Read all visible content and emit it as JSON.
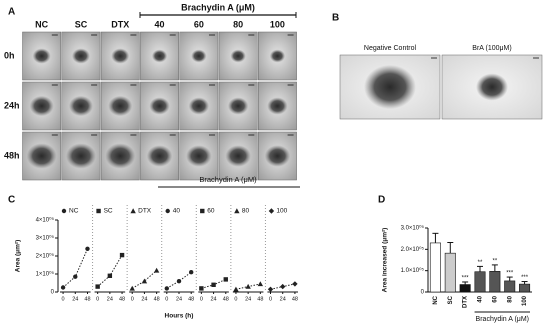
{
  "panel_a": {
    "label": "A",
    "group_label": "Brachydin A (μM)",
    "columns": [
      "NC",
      "SC",
      "DTX",
      "40",
      "60",
      "80",
      "100"
    ],
    "rows": [
      "0h",
      "24h",
      "48h"
    ]
  },
  "panel_b": {
    "label": "B",
    "images": [
      "Negative Control",
      "BrA (100μM)"
    ]
  },
  "chart_data": [
    {
      "type": "line",
      "panel": "C",
      "group_label": "Brachydin A (μM)",
      "xlabel": "Hours (h)",
      "ylabel": "Area (μm²)",
      "x": [
        0,
        24,
        48
      ],
      "xticks": [
        0,
        24,
        48
      ],
      "xlim": [
        -10,
        58
      ],
      "ylim": [
        0,
        400000
      ],
      "yticks": [
        0,
        {
          "value": 100000,
          "label": "1×10⁰⁵"
        },
        {
          "value": 200000,
          "label": "2×10⁰⁵"
        },
        {
          "value": 300000,
          "label": "3×10⁰⁵"
        },
        {
          "value": 400000,
          "label": "4×10⁰⁵"
        }
      ],
      "series": [
        {
          "name": "NC",
          "color": "#222222",
          "marker": "circle",
          "values": [
            25000,
            85000,
            240000
          ]
        },
        {
          "name": "SC",
          "color": "#222222",
          "marker": "square",
          "values": [
            30000,
            90000,
            205000
          ]
        },
        {
          "name": "DTX",
          "color": "#222222",
          "marker": "triangle",
          "values": [
            20000,
            60000,
            120000
          ]
        },
        {
          "name": "40",
          "color": "#222222",
          "marker": "circle",
          "values": [
            20000,
            60000,
            110000
          ]
        },
        {
          "name": "60",
          "color": "#222222",
          "marker": "square",
          "values": [
            20000,
            40000,
            70000
          ]
        },
        {
          "name": "80",
          "color": "#222222",
          "marker": "triangle",
          "values": [
            15000,
            30000,
            45000
          ]
        },
        {
          "name": "100",
          "color": "#222222",
          "marker": "diamond",
          "values": [
            15000,
            30000,
            45000
          ]
        }
      ]
    },
    {
      "type": "bar",
      "panel": "D",
      "group_label": "Brachydin A (μM)",
      "ylabel": "Area increased (μm²)",
      "categories": [
        "NC",
        "SC",
        "DTX",
        "40",
        "60",
        "80",
        "100"
      ],
      "values": [
        230000,
        182000,
        35000,
        95000,
        97000,
        52000,
        37000
      ],
      "errors": [
        45000,
        50000,
        12000,
        25000,
        30000,
        18000,
        12000
      ],
      "colors": [
        "#ffffff",
        "#cccccc",
        "#111111",
        "#555555",
        "#555555",
        "#555555",
        "#555555"
      ],
      "annotations": [
        null,
        null,
        "***",
        "**",
        "**",
        "***",
        "***"
      ],
      "ylim": [
        0,
        300000
      ],
      "yticks": [
        0,
        {
          "value": 100000,
          "label": "1.0×10⁰⁵"
        },
        {
          "value": 200000,
          "label": "2.0×10⁰⁵"
        },
        {
          "value": 300000,
          "label": "3.0×10⁰⁵"
        }
      ]
    }
  ]
}
